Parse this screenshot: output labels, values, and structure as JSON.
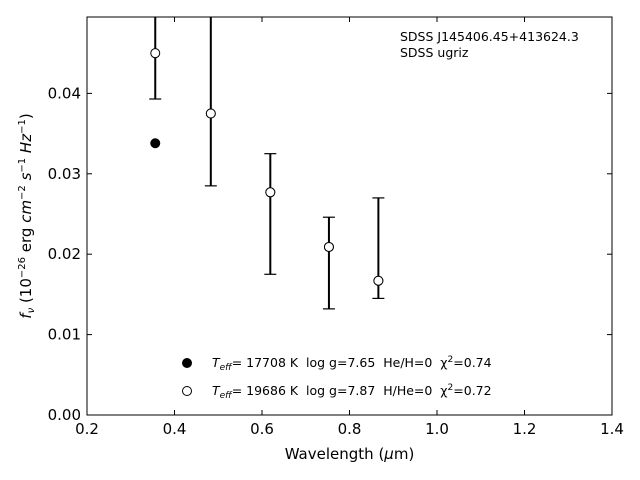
{
  "chart_data": {
    "type": "scatter",
    "title": "",
    "xlabel": "Wavelength (μm)",
    "ylabel": "f_ν (10^-26 erg cm^-2 s^-1 Hz^-1)",
    "xlim": [
      0.2,
      1.4
    ],
    "ylim": [
      0.0,
      0.0495
    ],
    "xticks": [
      0.2,
      0.4,
      0.6,
      0.8,
      1.0,
      1.2,
      1.4
    ],
    "xtick_labels": [
      "0.2",
      "0.4",
      "0.6",
      "0.8",
      "1.0",
      "1.2",
      "1.4"
    ],
    "yticks": [
      0.0,
      0.01,
      0.02,
      0.03,
      0.04
    ],
    "ytick_labels": [
      "0.00",
      "0.01",
      "0.02",
      "0.03",
      "0.04"
    ],
    "grid": false,
    "annotations": [
      "SDSS J145406.45+413624.3",
      "SDSS ugriz"
    ],
    "observed": {
      "x": [
        0.356,
        0.483,
        0.619,
        0.753,
        0.866
      ],
      "y_low": [
        0.0393,
        0.0285,
        0.0175,
        0.0132,
        0.0145
      ],
      "y_high": [
        0.0495,
        0.0495,
        0.0325,
        0.0246,
        0.027
      ]
    },
    "series": [
      {
        "name": "T_eff= 17708 K  log g=7.65  He/H=0  χ²=0.74",
        "marker": "filled",
        "x": [
          0.356,
          0.483,
          0.619,
          0.753,
          0.866
        ],
        "y": [
          0.0338,
          0.0375,
          0.0277,
          0.0209,
          0.0167
        ]
      },
      {
        "name": "T_eff= 19686 K  log g=7.87  H/He=0  χ²=0.72",
        "marker": "open",
        "x": [
          0.356,
          0.483,
          0.619,
          0.753,
          0.866
        ],
        "y": [
          0.045,
          0.0375,
          0.0277,
          0.0209,
          0.0167
        ]
      }
    ],
    "legend": {
      "placement": "lower-center",
      "entries": [
        {
          "marker": "filled",
          "teff_label": "T",
          "teff_sub": "eff",
          "text": "= 17708 K  log g=7.65  He/H=0  χ",
          "chi_sup": "2",
          "chi_val": "=0.74"
        },
        {
          "marker": "open",
          "teff_label": "T",
          "teff_sub": "eff",
          "text": "= 19686 K  log g=7.87  H/He=0  χ",
          "chi_sup": "2",
          "chi_val": "=0.72"
        }
      ]
    },
    "colors": {
      "marker": "#000000",
      "axis": "#000000",
      "background": "#ffffff"
    }
  }
}
